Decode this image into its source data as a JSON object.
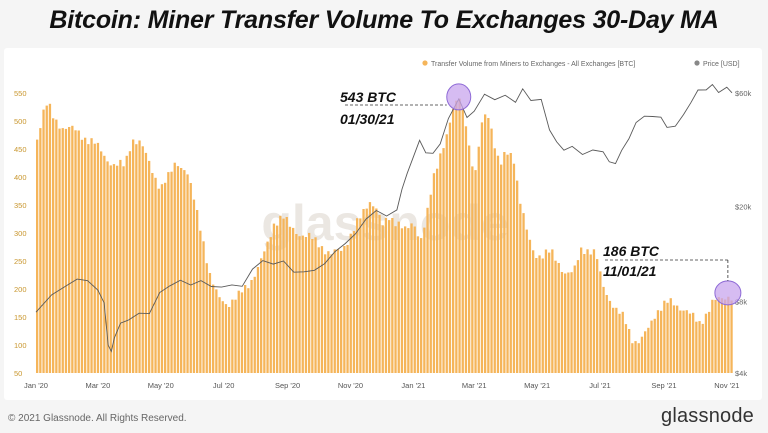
{
  "title": "Bitcoin: Miner Transfer Volume To Exchanges 30-Day MA",
  "footer": {
    "copyright": "© 2021 Glassnode. All Rights Reserved.",
    "brand": "glassnode"
  },
  "watermark": "glassnode",
  "colors": {
    "bars": "#f5b55a",
    "price": "#5a5a5a",
    "highlight": "#c8a6ee",
    "text": "#111111"
  },
  "chart_data": {
    "type": "bar",
    "legend": {
      "position": "top-right"
    },
    "series": [
      {
        "name": "Transfer Volume from Miners to Exchanges - All Exchanges [BTC]",
        "type": "bar",
        "axis": "left"
      },
      {
        "name": "Price [USD]",
        "type": "line",
        "axis": "right",
        "scale": "log"
      }
    ],
    "x_ticks": [
      "Jan '20",
      "Mar '20",
      "May '20",
      "Jul '20",
      "Sep '20",
      "Nov '20",
      "Jan '21",
      "Mar '21",
      "May '21",
      "Jul '21",
      "Sep '21",
      "Nov '21"
    ],
    "y_left": {
      "min": 50,
      "max": 550,
      "ticks": [
        50,
        100,
        150,
        200,
        250,
        300,
        350,
        400,
        450,
        500,
        550
      ]
    },
    "y_right": {
      "min": 4000,
      "max": 60000,
      "scale": "log",
      "ticks": [
        {
          "value": 4000,
          "label": "$4k"
        },
        {
          "value": 8000,
          "label": "$8k"
        },
        {
          "value": 20000,
          "label": "$20k"
        },
        {
          "value": 60000,
          "label": "$60k"
        }
      ]
    },
    "volume_points": [
      {
        "d": 0,
        "v": 470
      },
      {
        "d": 5,
        "v": 510
      },
      {
        "d": 10,
        "v": 530
      },
      {
        "d": 16,
        "v": 505
      },
      {
        "d": 25,
        "v": 490
      },
      {
        "d": 40,
        "v": 480
      },
      {
        "d": 55,
        "v": 460
      },
      {
        "d": 65,
        "v": 440
      },
      {
        "d": 75,
        "v": 420
      },
      {
        "d": 85,
        "v": 420
      },
      {
        "d": 92,
        "v": 470
      },
      {
        "d": 100,
        "v": 460
      },
      {
        "d": 110,
        "v": 420
      },
      {
        "d": 120,
        "v": 380
      },
      {
        "d": 128,
        "v": 400
      },
      {
        "d": 135,
        "v": 430
      },
      {
        "d": 145,
        "v": 410
      },
      {
        "d": 160,
        "v": 300
      },
      {
        "d": 168,
        "v": 220
      },
      {
        "d": 175,
        "v": 185
      },
      {
        "d": 185,
        "v": 175
      },
      {
        "d": 195,
        "v": 185
      },
      {
        "d": 205,
        "v": 210
      },
      {
        "d": 215,
        "v": 240
      },
      {
        "d": 222,
        "v": 270
      },
      {
        "d": 230,
        "v": 320
      },
      {
        "d": 238,
        "v": 330
      },
      {
        "d": 245,
        "v": 310
      },
      {
        "d": 255,
        "v": 300
      },
      {
        "d": 265,
        "v": 290
      },
      {
        "d": 275,
        "v": 280
      },
      {
        "d": 285,
        "v": 260
      },
      {
        "d": 295,
        "v": 270
      },
      {
        "d": 305,
        "v": 300
      },
      {
        "d": 315,
        "v": 330
      },
      {
        "d": 322,
        "v": 360
      },
      {
        "d": 328,
        "v": 350
      },
      {
        "d": 335,
        "v": 310
      },
      {
        "d": 342,
        "v": 330
      },
      {
        "d": 350,
        "v": 320
      },
      {
        "d": 358,
        "v": 300
      },
      {
        "d": 365,
        "v": 320
      },
      {
        "d": 372,
        "v": 290
      },
      {
        "d": 378,
        "v": 330
      },
      {
        "d": 385,
        "v": 400
      },
      {
        "d": 392,
        "v": 450
      },
      {
        "d": 398,
        "v": 480
      },
      {
        "d": 404,
        "v": 520
      },
      {
        "d": 410,
        "v": 543
      },
      {
        "d": 416,
        "v": 500
      },
      {
        "d": 420,
        "v": 440
      },
      {
        "d": 425,
        "v": 400
      },
      {
        "d": 430,
        "v": 480
      },
      {
        "d": 435,
        "v": 520
      },
      {
        "d": 440,
        "v": 500
      },
      {
        "d": 445,
        "v": 440
      },
      {
        "d": 450,
        "v": 420
      },
      {
        "d": 455,
        "v": 445
      },
      {
        "d": 462,
        "v": 440
      },
      {
        "d": 468,
        "v": 360
      },
      {
        "d": 475,
        "v": 300
      },
      {
        "d": 482,
        "v": 265
      },
      {
        "d": 490,
        "v": 260
      },
      {
        "d": 498,
        "v": 265
      },
      {
        "d": 505,
        "v": 250
      },
      {
        "d": 512,
        "v": 230
      },
      {
        "d": 520,
        "v": 225
      },
      {
        "d": 528,
        "v": 275
      },
      {
        "d": 535,
        "v": 270
      },
      {
        "d": 542,
        "v": 260
      },
      {
        "d": 548,
        "v": 210
      },
      {
        "d": 555,
        "v": 185
      },
      {
        "d": 562,
        "v": 160
      },
      {
        "d": 570,
        "v": 145
      },
      {
        "d": 578,
        "v": 110
      },
      {
        "d": 585,
        "v": 105
      },
      {
        "d": 592,
        "v": 125
      },
      {
        "d": 600,
        "v": 160
      },
      {
        "d": 606,
        "v": 170
      },
      {
        "d": 612,
        "v": 175
      },
      {
        "d": 620,
        "v": 172
      },
      {
        "d": 628,
        "v": 165
      },
      {
        "d": 635,
        "v": 150
      },
      {
        "d": 642,
        "v": 138
      },
      {
        "d": 648,
        "v": 155
      },
      {
        "d": 655,
        "v": 175
      },
      {
        "d": 662,
        "v": 180
      },
      {
        "d": 670,
        "v": 190
      },
      {
        "d": 675,
        "v": 186
      }
    ],
    "price_points": [
      {
        "d": 0,
        "p": 7200
      },
      {
        "d": 15,
        "p": 8600
      },
      {
        "d": 30,
        "p": 9200
      },
      {
        "d": 40,
        "p": 10000
      },
      {
        "d": 50,
        "p": 9800
      },
      {
        "d": 60,
        "p": 8800
      },
      {
        "d": 66,
        "p": 8000
      },
      {
        "d": 70,
        "p": 5200
      },
      {
        "d": 73,
        "p": 4900
      },
      {
        "d": 76,
        "p": 5700
      },
      {
        "d": 82,
        "p": 6400
      },
      {
        "d": 90,
        "p": 6700
      },
      {
        "d": 100,
        "p": 7200
      },
      {
        "d": 110,
        "p": 7000
      },
      {
        "d": 120,
        "p": 8800
      },
      {
        "d": 130,
        "p": 9300
      },
      {
        "d": 140,
        "p": 9700
      },
      {
        "d": 150,
        "p": 9500
      },
      {
        "d": 160,
        "p": 9700
      },
      {
        "d": 170,
        "p": 9200
      },
      {
        "d": 180,
        "p": 9300
      },
      {
        "d": 190,
        "p": 9250
      },
      {
        "d": 200,
        "p": 9300
      },
      {
        "d": 210,
        "p": 11000
      },
      {
        "d": 220,
        "p": 11700
      },
      {
        "d": 230,
        "p": 11600
      },
      {
        "d": 240,
        "p": 11800
      },
      {
        "d": 250,
        "p": 10500
      },
      {
        "d": 260,
        "p": 10800
      },
      {
        "d": 270,
        "p": 10700
      },
      {
        "d": 280,
        "p": 11500
      },
      {
        "d": 290,
        "p": 13100
      },
      {
        "d": 300,
        "p": 13800
      },
      {
        "d": 310,
        "p": 15500
      },
      {
        "d": 320,
        "p": 17800
      },
      {
        "d": 330,
        "p": 19000
      },
      {
        "d": 340,
        "p": 18500
      },
      {
        "d": 350,
        "p": 19300
      },
      {
        "d": 355,
        "p": 23500
      },
      {
        "d": 360,
        "p": 28000
      },
      {
        "d": 366,
        "p": 32000
      },
      {
        "d": 372,
        "p": 38000
      },
      {
        "d": 378,
        "p": 34000
      },
      {
        "d": 385,
        "p": 33000
      },
      {
        "d": 392,
        "p": 37000
      },
      {
        "d": 400,
        "p": 47000
      },
      {
        "d": 410,
        "p": 56000
      },
      {
        "d": 418,
        "p": 48000
      },
      {
        "d": 425,
        "p": 50000
      },
      {
        "d": 435,
        "p": 59000
      },
      {
        "d": 445,
        "p": 57000
      },
      {
        "d": 455,
        "p": 58000
      },
      {
        "d": 465,
        "p": 55000
      },
      {
        "d": 472,
        "p": 63000
      },
      {
        "d": 480,
        "p": 55000
      },
      {
        "d": 490,
        "p": 57000
      },
      {
        "d": 498,
        "p": 42000
      },
      {
        "d": 505,
        "p": 37000
      },
      {
        "d": 512,
        "p": 35000
      },
      {
        "d": 520,
        "p": 35500
      },
      {
        "d": 530,
        "p": 33000
      },
      {
        "d": 540,
        "p": 35000
      },
      {
        "d": 550,
        "p": 33500
      },
      {
        "d": 556,
        "p": 31000
      },
      {
        "d": 562,
        "p": 30500
      },
      {
        "d": 568,
        "p": 34000
      },
      {
        "d": 575,
        "p": 39000
      },
      {
        "d": 582,
        "p": 45000
      },
      {
        "d": 590,
        "p": 47500
      },
      {
        "d": 598,
        "p": 48500
      },
      {
        "d": 606,
        "p": 47000
      },
      {
        "d": 612,
        "p": 43000
      },
      {
        "d": 620,
        "p": 44000
      },
      {
        "d": 628,
        "p": 48000
      },
      {
        "d": 635,
        "p": 55000
      },
      {
        "d": 642,
        "p": 62000
      },
      {
        "d": 650,
        "p": 61000
      },
      {
        "d": 656,
        "p": 66000
      },
      {
        "d": 662,
        "p": 60000
      },
      {
        "d": 670,
        "p": 63000
      },
      {
        "d": 675,
        "p": 61000
      }
    ],
    "annotations": [
      {
        "value": "543 BTC",
        "date": "01/30/21",
        "d": 410,
        "v": 543
      },
      {
        "value": "186 BTC",
        "date": "11/01/21",
        "d": 671,
        "v": 186
      }
    ]
  }
}
